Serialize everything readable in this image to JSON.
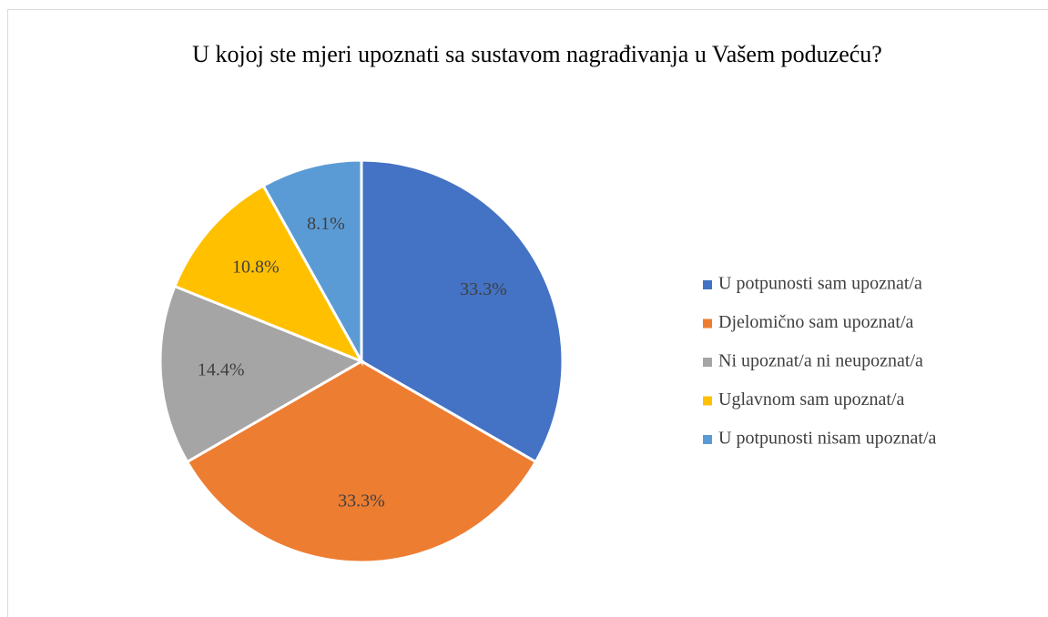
{
  "chart_data": {
    "type": "pie",
    "title": "U kojoj ste mjeri upoznati sa sustavom nagrađivanja u Vašem poduzeću?",
    "categories": [
      "U potpunosti sam upoznat/a",
      "Djelomično sam upoznat/a",
      "Ni upoznat/a ni neupoznat/a",
      "Uglavnom sam upoznat/a",
      "U potpunosti nisam upoznat/a"
    ],
    "values": [
      33.3,
      33.3,
      14.4,
      10.8,
      8.1
    ],
    "value_labels": [
      "33.3%",
      "33.3%",
      "14.4%",
      "10.8%",
      "8.1%"
    ],
    "colors": [
      "#4472c4",
      "#ed7d31",
      "#a5a5a5",
      "#ffc000",
      "#5b9bd5"
    ],
    "legend": "right"
  }
}
